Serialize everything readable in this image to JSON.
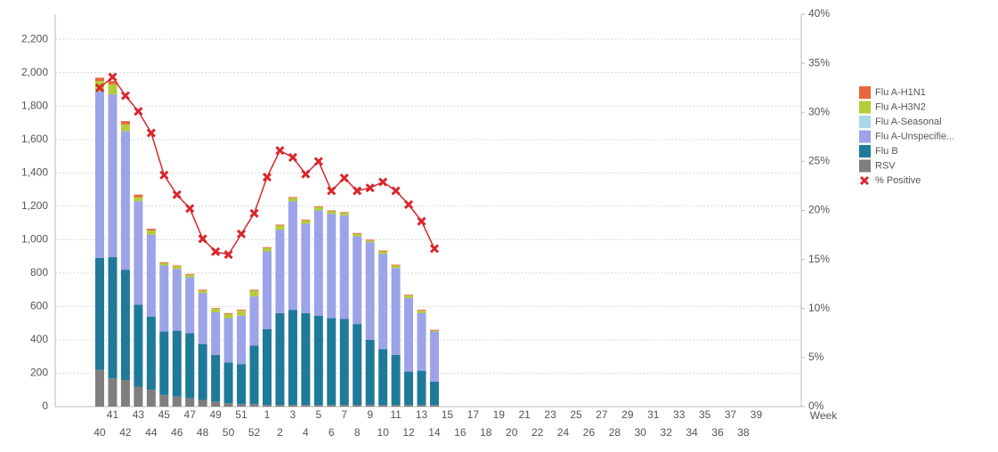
{
  "chart_data": {
    "type": "bar",
    "xlabel": "Week",
    "categories": [
      "40",
      "41",
      "42",
      "43",
      "44",
      "45",
      "46",
      "47",
      "48",
      "49",
      "50",
      "51",
      "52",
      "1",
      "2",
      "3",
      "4",
      "5",
      "6",
      "7",
      "8",
      "9",
      "10",
      "11",
      "12",
      "13",
      "14",
      "15",
      "16",
      "17",
      "18",
      "19",
      "20",
      "21",
      "22",
      "23",
      "24",
      "25",
      "26",
      "27",
      "28",
      "29",
      "30",
      "31",
      "32",
      "33",
      "34",
      "35",
      "36",
      "37",
      "38",
      "39"
    ],
    "series": [
      {
        "name": "Flu A-H1N1",
        "color": "#e8673a",
        "values": [
          20,
          20,
          20,
          15,
          10,
          5,
          5,
          5,
          5,
          5,
          5,
          5,
          5,
          5,
          5,
          5,
          5,
          5,
          5,
          5,
          5,
          5,
          5,
          5,
          5,
          5,
          5,
          null,
          null,
          null,
          null,
          null,
          null,
          null,
          null,
          null,
          null,
          null,
          null,
          null,
          null,
          null,
          null,
          null,
          null,
          null,
          null,
          null,
          null,
          null,
          null,
          null
        ]
      },
      {
        "name": "Flu A-H3N2",
        "color": "#b5cc3a",
        "values": [
          60,
          60,
          40,
          25,
          25,
          15,
          15,
          15,
          15,
          20,
          25,
          30,
          35,
          20,
          25,
          20,
          20,
          20,
          15,
          15,
          15,
          10,
          15,
          15,
          15,
          15,
          5,
          null,
          null,
          null,
          null,
          null,
          null,
          null,
          null,
          null,
          null,
          null,
          null,
          null,
          null,
          null,
          null,
          null,
          null,
          null,
          null,
          null,
          null,
          null,
          null,
          null
        ]
      },
      {
        "name": "Flu A-Seasonal",
        "color": "#a7d8e8",
        "values": [
          0,
          0,
          0,
          0,
          0,
          0,
          0,
          0,
          0,
          0,
          0,
          0,
          0,
          0,
          0,
          0,
          0,
          0,
          0,
          0,
          0,
          0,
          0,
          0,
          0,
          0,
          0,
          null,
          null,
          null,
          null,
          null,
          null,
          null,
          null,
          null,
          null,
          null,
          null,
          null,
          null,
          null,
          null,
          null,
          null,
          null,
          null,
          null,
          null,
          null,
          null,
          null
        ]
      },
      {
        "name": "Flu A-Unspecifie...",
        "color": "#9da3e8",
        "values": [
          1000,
          975,
          830,
          620,
          490,
          395,
          370,
          335,
          305,
          255,
          265,
          290,
          295,
          465,
          500,
          650,
          535,
          630,
          625,
          620,
          525,
          585,
          570,
          520,
          440,
          345,
          300,
          null,
          null,
          null,
          null,
          null,
          null,
          null,
          null,
          null,
          null,
          null,
          null,
          null,
          null,
          null,
          null,
          null,
          null,
          null,
          null,
          null,
          null,
          null,
          null,
          null
        ]
      },
      {
        "name": "Flu B",
        "color": "#1f7a99",
        "values": [
          670,
          725,
          660,
          490,
          440,
          380,
          395,
          390,
          335,
          280,
          245,
          240,
          350,
          455,
          550,
          570,
          550,
          535,
          520,
          515,
          485,
          390,
          335,
          300,
          200,
          205,
          140,
          null,
          null,
          null,
          null,
          null,
          null,
          null,
          null,
          null,
          null,
          null,
          null,
          null,
          null,
          null,
          null,
          null,
          null,
          null,
          null,
          null,
          null,
          null,
          null,
          null
        ]
      },
      {
        "name": "RSV",
        "color": "#7f7f7f",
        "values": [
          220,
          170,
          160,
          120,
          100,
          70,
          60,
          50,
          40,
          30,
          20,
          15,
          15,
          10,
          10,
          10,
          10,
          10,
          10,
          10,
          10,
          10,
          10,
          10,
          10,
          10,
          10,
          null,
          null,
          null,
          null,
          null,
          null,
          null,
          null,
          null,
          null,
          null,
          null,
          null,
          null,
          null,
          null,
          null,
          null,
          null,
          null,
          null,
          null,
          null,
          null,
          null
        ]
      },
      {
        "name": "% Positive",
        "color": "#d9262b",
        "type": "line",
        "axis": "y2",
        "values": [
          32.5,
          33.6,
          31.7,
          30.1,
          27.9,
          23.6,
          21.6,
          20.2,
          17.1,
          15.8,
          15.5,
          17.6,
          19.7,
          23.4,
          26.1,
          25.4,
          23.7,
          25.0,
          22.0,
          23.3,
          22.0,
          22.3,
          22.9,
          22.0,
          20.6,
          18.9,
          16.1,
          null,
          null,
          null,
          null,
          null,
          null,
          null,
          null,
          null,
          null,
          null,
          null,
          null,
          null,
          null,
          null,
          null,
          null,
          null,
          null,
          null,
          null,
          null,
          null,
          null
        ]
      }
    ],
    "ylim": [
      0,
      2350
    ],
    "yticks": [
      0,
      200,
      400,
      600,
      800,
      {
        "value": 1000,
        "label": "1,000"
      },
      {
        "value": 1200,
        "label": "1,200"
      },
      {
        "value": 1400,
        "label": "1,400"
      },
      {
        "value": 1600,
        "label": "1,600"
      },
      {
        "value": 1800,
        "label": "1,800"
      },
      {
        "value": 2000,
        "label": "2,000"
      },
      {
        "value": 2200,
        "label": "2,200"
      }
    ],
    "y2lim": [
      0,
      40
    ],
    "y2ticks": [
      {
        "value": 0,
        "label": "0%"
      },
      {
        "value": 5,
        "label": "5%"
      },
      {
        "value": 10,
        "label": "10%"
      },
      {
        "value": 15,
        "label": "15%"
      },
      {
        "value": 20,
        "label": "20%"
      },
      {
        "value": 25,
        "label": "25%"
      },
      {
        "value": 30,
        "label": "30%"
      },
      {
        "value": 35,
        "label": "35%"
      },
      {
        "value": 40,
        "label": "40%"
      }
    ],
    "grid": true,
    "legend": "right"
  }
}
